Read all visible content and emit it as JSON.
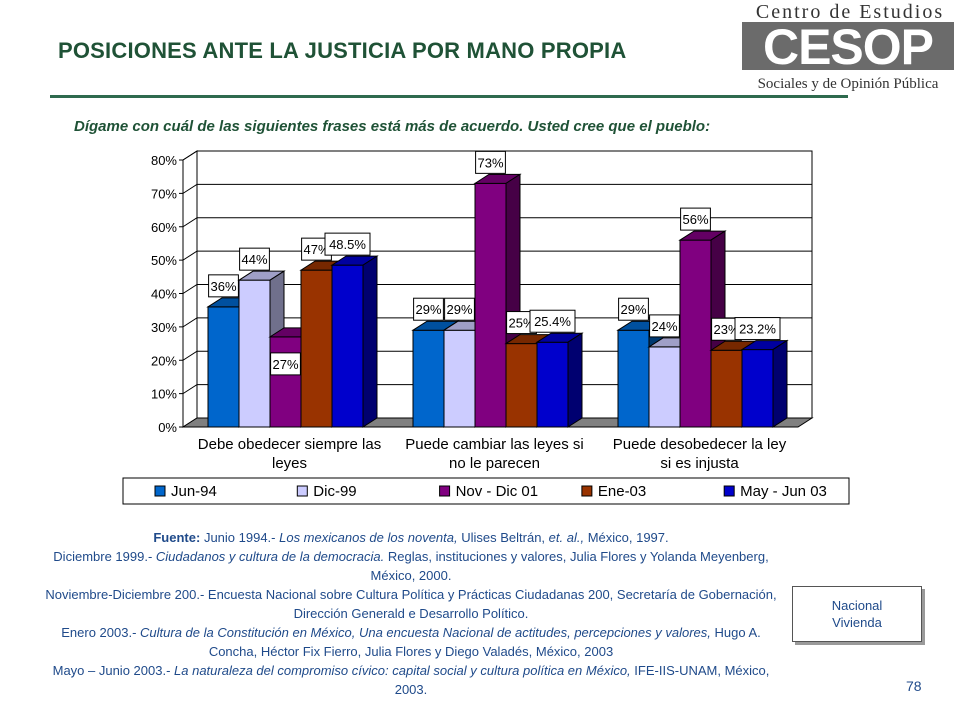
{
  "page": {
    "title": "POSICIONES ANTE LA JUSTICIA POR MANO PROPIA",
    "question": "Dígame con cuál de las siguientes frases está más de acuerdo. Usted cree que el pueblo:",
    "page_number": "78"
  },
  "logo": {
    "line1": "Centro de Estudios",
    "mark": "CESOP",
    "line2": "Sociales y de Opinión Pública"
  },
  "note": {
    "line1": "Nacional",
    "line2": "Vivienda"
  },
  "source": {
    "label": "Fuente:",
    "l1_plain": "Junio 1994.- ",
    "l1_italic": "Los mexicanos de los noventa,",
    "l1_rest": " Ulises Beltrán, ",
    "l1_italic2": "et. al.,",
    "l1_end": " México, 1997.",
    "l2_plain": "Diciembre 1999.- ",
    "l2_italic": "Ciudadanos y cultura de la democracia.",
    "l2_rest": " Reglas, instituciones y valores, Julia Flores y Yolanda Meyenberg, México, 2000.",
    "l3": "Noviembre-Diciembre 200.- Encuesta Nacional sobre Cultura Política y Prácticas Ciudadanas 200, Secretaría de Gobernación, Dirección Generald e Desarrollo Político.",
    "l4_plain": "Enero 2003.- ",
    "l4_italic": "Cultura de la Constitución en México, Una encuesta Nacional de actitudes, percepciones y valores,",
    "l4_rest": " Hugo A. Concha, Héctor Fix Fierro, Julia Flores y Diego Valadés, México, 2003",
    "l5_plain": "Mayo – Junio 2003.- ",
    "l5_italic": "La naturaleza del compromiso cívico: capital social y cultura política en México,",
    "l5_rest": " IFE-IIS-UNAM, México, 2003."
  },
  "chart_data": {
    "type": "bar",
    "title": "",
    "xlabel": "",
    "ylabel": "",
    "ylim": [
      0,
      80
    ],
    "ytick_labels": [
      "0%",
      "10%",
      "20%",
      "30%",
      "40%",
      "50%",
      "60%",
      "70%",
      "80%"
    ],
    "grid": true,
    "legend_position": "bottom",
    "categories": [
      "Debe obedecer siempre las leyes",
      "Puede cambiar las leyes si no le parecen",
      "Puede desobedecer la ley si es injusta"
    ],
    "series": [
      {
        "name": "Jun-94",
        "color": "#0066cc",
        "values": [
          36,
          29,
          29
        ],
        "labels": [
          "36%",
          "29%",
          "29%"
        ]
      },
      {
        "name": "Dic-99",
        "color": "#ccccff",
        "values": [
          44,
          29,
          24
        ],
        "labels": [
          "44%",
          "29%",
          "24%"
        ]
      },
      {
        "name": "Nov - Dic 01",
        "color": "#800080",
        "values": [
          27,
          73,
          56
        ],
        "labels": [
          "27%",
          "73%",
          "56%"
        ]
      },
      {
        "name": "Ene-03",
        "color": "#993300",
        "values": [
          47,
          25,
          23
        ],
        "labels": [
          "47%",
          "25%",
          "23%"
        ]
      },
      {
        "name": "May - Jun 03",
        "color": "#0000cc",
        "values": [
          48.5,
          25.4,
          23.2
        ],
        "labels": [
          "48.5%",
          "25.4%",
          "23.2%"
        ]
      }
    ]
  }
}
